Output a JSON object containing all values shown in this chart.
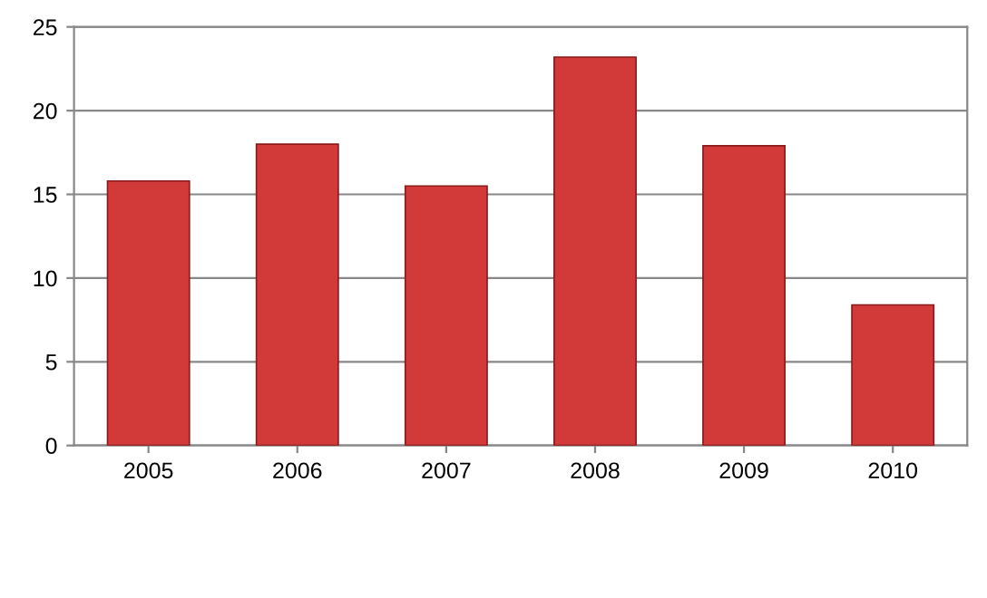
{
  "chart_data": {
    "type": "bar",
    "categories": [
      "2005",
      "2006",
      "2007",
      "2008",
      "2009",
      "2010"
    ],
    "values": [
      15.8,
      18.0,
      15.5,
      23.2,
      17.9,
      8.4
    ],
    "color": "#d23a3a",
    "ylim": [
      0,
      25
    ],
    "yticks": [
      0,
      5,
      10,
      15,
      20,
      25
    ],
    "grid": "y"
  }
}
